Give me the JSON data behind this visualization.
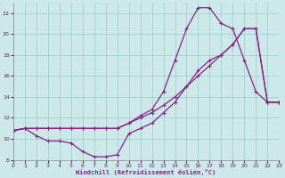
{
  "xlabel": "Windchill (Refroidissement éolien,°C)",
  "background_color": "#cce8e8",
  "grid_color": "#99cccc",
  "line_color": "#882288",
  "xlim": [
    0,
    23
  ],
  "ylim": [
    8,
    23
  ],
  "yticks": [
    8,
    10,
    12,
    14,
    16,
    18,
    20,
    22
  ],
  "xticks": [
    0,
    1,
    2,
    3,
    4,
    5,
    6,
    7,
    8,
    9,
    10,
    11,
    12,
    13,
    14,
    15,
    16,
    17,
    18,
    19,
    20,
    21,
    22,
    23
  ],
  "series": [
    {
      "x": [
        0,
        1,
        2,
        3,
        4,
        5,
        6,
        7,
        8,
        9,
        10,
        11,
        12,
        13,
        14,
        15,
        16,
        17,
        18,
        19,
        20,
        21,
        22,
        23
      ],
      "y": [
        10.8,
        11.0,
        11.0,
        11.0,
        11.0,
        11.0,
        11.0,
        11.0,
        11.0,
        11.0,
        11.5,
        12.0,
        12.5,
        13.2,
        14.0,
        15.0,
        16.0,
        17.0,
        18.0,
        19.0,
        20.5,
        20.5,
        13.5,
        13.5
      ]
    },
    {
      "x": [
        0,
        1,
        2,
        3,
        4,
        5,
        6,
        7,
        8,
        9,
        10,
        11,
        12,
        13,
        14,
        15,
        16,
        17,
        18,
        19,
        20,
        21,
        22,
        23
      ],
      "y": [
        10.8,
        11.0,
        11.0,
        11.0,
        11.0,
        11.0,
        11.0,
        11.0,
        11.0,
        11.0,
        11.5,
        12.2,
        12.8,
        14.5,
        17.5,
        20.5,
        22.5,
        22.5,
        21.0,
        20.5,
        17.5,
        14.5,
        13.5,
        13.5
      ]
    },
    {
      "x": [
        0,
        1,
        2,
        3,
        4,
        5,
        6,
        7,
        8,
        9,
        10,
        11,
        12,
        13,
        14,
        15,
        16,
        17,
        18,
        19,
        20,
        21,
        22,
        23
      ],
      "y": [
        10.8,
        11.0,
        10.3,
        9.8,
        9.8,
        9.6,
        8.8,
        8.3,
        8.3,
        8.5,
        10.5,
        11.0,
        11.5,
        12.5,
        13.5,
        15.0,
        16.5,
        17.5,
        18.0,
        19.0,
        20.5,
        20.5,
        13.5,
        13.5
      ]
    }
  ]
}
